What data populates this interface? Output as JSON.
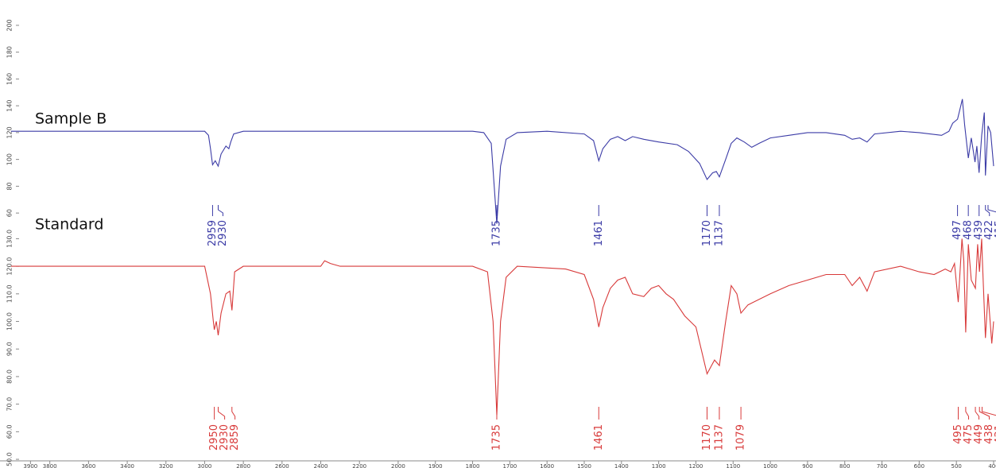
{
  "chart_data": [
    {
      "type": "line",
      "x": [
        4000,
        3500,
        3000,
        2980,
        2970,
        2959,
        2945,
        2930,
        2915,
        2890,
        2875,
        2865,
        2850,
        2800,
        2400,
        2000,
        1800,
        1770,
        1750,
        1735,
        1725,
        1710,
        1680,
        1600,
        1500,
        1475,
        1461,
        1450,
        1430,
        1410,
        1390,
        1370,
        1340,
        1300,
        1250,
        1220,
        1190,
        1170,
        1155,
        1145,
        1137,
        1120,
        1105,
        1090,
        1070,
        1050,
        1030,
        1000,
        950,
        900,
        850,
        800,
        780,
        760,
        740,
        720,
        650,
        600,
        540,
        520,
        510,
        497,
        490,
        484,
        478,
        468,
        460,
        450,
        445,
        439,
        432,
        425,
        422,
        415,
        408,
        400
      ],
      "series": [
        {
          "name": "Sample B",
          "color": "#3b3ba6",
          "values": [
            121,
            121,
            121,
            118,
            108,
            96,
            99,
            95,
            104,
            110,
            108,
            113,
            119,
            121,
            121,
            121,
            121,
            120,
            112,
            52,
            95,
            115,
            120,
            121,
            119,
            114,
            99,
            108,
            115,
            117,
            114,
            117,
            115,
            113,
            111,
            106,
            97,
            85,
            90,
            91,
            87,
            100,
            112,
            116,
            113,
            109,
            112,
            116,
            118,
            120,
            120,
            118,
            115,
            116,
            113,
            119,
            121,
            120,
            118,
            121,
            127,
            130,
            138,
            145,
            126,
            101,
            116,
            98,
            110,
            90,
            118,
            135,
            88,
            125,
            120,
            95
          ]
        }
      ],
      "peaks": [
        2959,
        2930,
        1735,
        1461,
        1170,
        1137,
        497,
        468,
        439,
        422,
        415
      ],
      "xlim": [
        4000,
        400
      ],
      "x_scale_break": 2000,
      "ylim": [
        50,
        210
      ],
      "yticks": [
        200,
        180,
        160,
        140,
        120,
        100,
        80,
        60
      ]
    },
    {
      "type": "line",
      "x": [
        4000,
        3500,
        3000,
        2970,
        2955,
        2950,
        2940,
        2930,
        2915,
        2890,
        2870,
        2859,
        2845,
        2800,
        2400,
        2380,
        2350,
        2300,
        1800,
        1760,
        1745,
        1735,
        1725,
        1710,
        1680,
        1550,
        1500,
        1475,
        1461,
        1450,
        1430,
        1410,
        1390,
        1370,
        1340,
        1320,
        1300,
        1280,
        1260,
        1230,
        1200,
        1170,
        1150,
        1137,
        1120,
        1105,
        1090,
        1079,
        1060,
        1000,
        950,
        900,
        850,
        800,
        780,
        760,
        740,
        720,
        650,
        600,
        560,
        530,
        515,
        505,
        495,
        485,
        480,
        475,
        468,
        460,
        449,
        443,
        438,
        432,
        431,
        422,
        415,
        405,
        400
      ],
      "series": [
        {
          "name": "Standard",
          "color": "#d83a3a",
          "values": [
            120,
            120,
            120,
            110,
            100,
            97,
            100,
            95,
            103,
            110,
            111,
            104,
            118,
            120,
            120,
            122,
            121,
            120,
            120,
            118,
            100,
            66,
            100,
            116,
            120,
            119,
            117,
            108,
            98,
            105,
            112,
            115,
            116,
            110,
            109,
            112,
            113,
            110,
            108,
            102,
            98,
            81,
            86,
            84,
            100,
            113,
            110,
            103,
            106,
            110,
            113,
            115,
            117,
            117,
            113,
            116,
            111,
            118,
            120,
            118,
            117,
            119,
            118,
            121,
            107,
            130,
            122,
            96,
            128,
            115,
            112,
            128,
            118,
            130,
            125,
            94,
            110,
            92,
            100
          ]
        }
      ],
      "peaks": [
        2950,
        2930,
        2859,
        1735,
        1461,
        1170,
        1137,
        1079,
        495,
        475,
        449,
        438,
        431
      ],
      "xlim": [
        4000,
        400
      ],
      "x_scale_break": 2000,
      "xticks": [
        3900,
        3800,
        3600,
        3400,
        3200,
        3000,
        2800,
        2600,
        2400,
        2200,
        2000,
        1900,
        1800,
        1700,
        1600,
        1500,
        1400,
        1300,
        1200,
        1100,
        1000,
        900,
        800,
        700,
        600,
        500,
        400
      ],
      "ylim": [
        48,
        133
      ],
      "yticks": [
        {
          "value": 130,
          "label": "130.0"
        },
        {
          "value": 120,
          "label": "120.0"
        },
        {
          "value": 110,
          "label": "110.0"
        },
        {
          "value": 100,
          "label": "100.0"
        },
        {
          "value": 90,
          "label": "90.0"
        },
        {
          "value": 80,
          "label": "80.0"
        },
        {
          "value": 70,
          "label": "70.0"
        },
        {
          "value": 60,
          "label": "60.0"
        },
        {
          "value": 50,
          "label": "50.0"
        }
      ]
    }
  ]
}
